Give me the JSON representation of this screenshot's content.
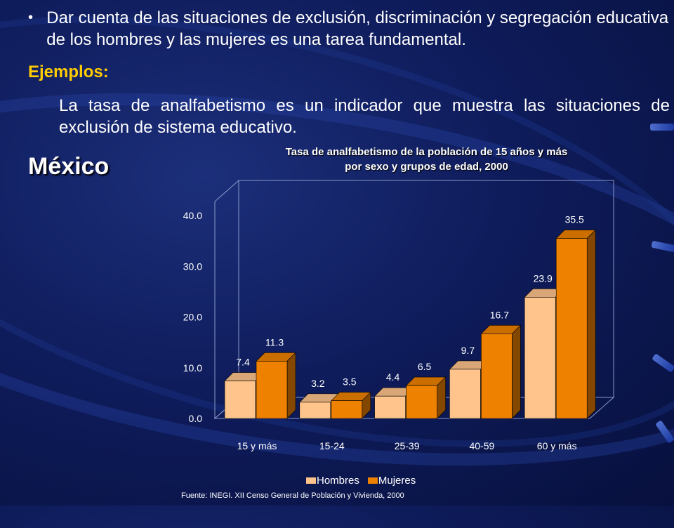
{
  "slide": {
    "bullet_symbol": "•",
    "paragraph1": "Dar cuenta de las situaciones de exclusión, discriminación y segregación educativa de los hombres y las mujeres es una tarea fundamental.",
    "examples_heading": "Ejemplos:",
    "paragraph2": "La tasa de analfabetismo es un indicador que muestra las situaciones de exclusión de sistema educativo.",
    "country_heading": "México",
    "source_note": "Fuente: INEGI. XII Censo General de Población y Vivienda, 2000",
    "colors": {
      "background": "#0f1c5c",
      "examples_heading": "#ffcc00",
      "hombres": "#ffc48c",
      "mujeres": "#ee8100"
    }
  },
  "chart_data": {
    "type": "bar",
    "title_line1": "Tasa de analfabetismo de la población de 15 años y más",
    "title_line2": "por sexo y grupos de edad, 2000",
    "categories": [
      "15 y más",
      "15-24",
      "25-39",
      "40-59",
      "60 y más"
    ],
    "series": [
      {
        "name": "Hombres",
        "values": [
          7.4,
          3.2,
          4.4,
          9.7,
          23.9
        ],
        "labels": [
          "7.4",
          "3.2",
          "4.4",
          "9.7",
          "23.9"
        ]
      },
      {
        "name": "Mujeres",
        "values": [
          11.3,
          3.5,
          6.5,
          16.7,
          35.5
        ],
        "labels": [
          "11.3",
          "3.5",
          "6.5",
          "16.7",
          "35.5"
        ]
      }
    ],
    "yticks": [
      "0.0",
      "10.0",
      "20.0",
      "30.0",
      "40.0"
    ],
    "ylim": [
      0,
      40
    ],
    "legend_position": "bottom",
    "style": "3d"
  }
}
